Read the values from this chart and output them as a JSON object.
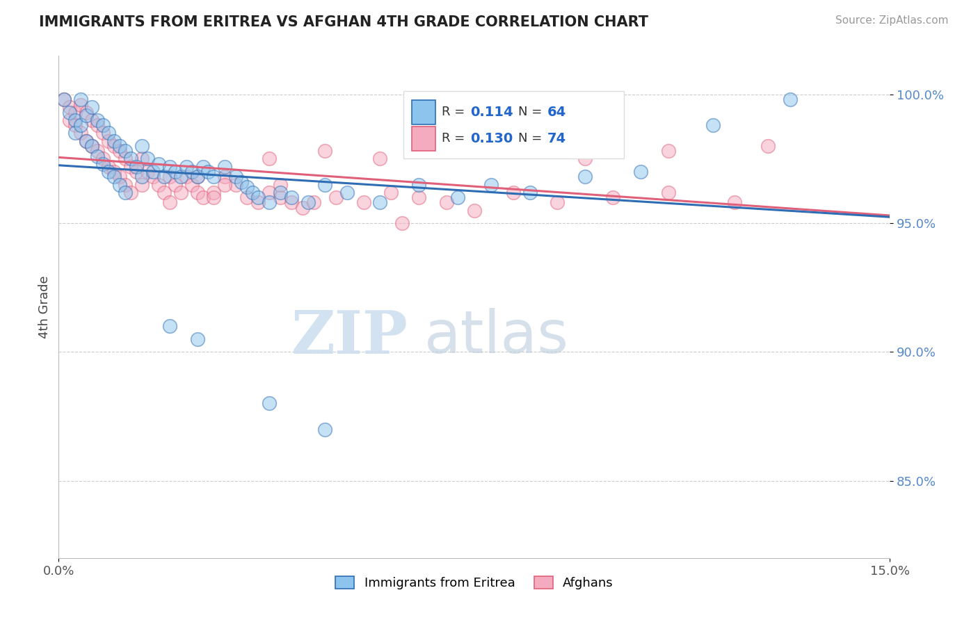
{
  "title": "IMMIGRANTS FROM ERITREA VS AFGHAN 4TH GRADE CORRELATION CHART",
  "source": "Source: ZipAtlas.com",
  "ylabel": "4th Grade",
  "xlim": [
    0.0,
    0.15
  ],
  "ylim": [
    0.82,
    1.015
  ],
  "yticks": [
    0.85,
    0.9,
    0.95,
    1.0
  ],
  "yticklabels": [
    "85.0%",
    "90.0%",
    "95.0%",
    "100.0%"
  ],
  "legend1_label": "Immigrants from Eritrea",
  "legend2_label": "Afghans",
  "r1": 0.114,
  "n1": 64,
  "r2": 0.13,
  "n2": 74,
  "color_eritrea": "#8DC4ED",
  "color_afghan": "#F4AABF",
  "color_line_eritrea": "#2E6DB4",
  "color_line_afghan": "#E0607A",
  "watermark_zip": "ZIP",
  "watermark_atlas": "atlas",
  "blue_x": [
    0.001,
    0.002,
    0.003,
    0.003,
    0.004,
    0.004,
    0.005,
    0.005,
    0.006,
    0.006,
    0.007,
    0.007,
    0.008,
    0.008,
    0.009,
    0.009,
    0.01,
    0.01,
    0.011,
    0.011,
    0.012,
    0.012,
    0.013,
    0.014,
    0.015,
    0.015,
    0.016,
    0.017,
    0.018,
    0.019,
    0.02,
    0.021,
    0.022,
    0.023,
    0.024,
    0.025,
    0.026,
    0.027,
    0.028,
    0.03,
    0.032,
    0.033,
    0.034,
    0.035,
    0.036,
    0.038,
    0.04,
    0.042,
    0.045,
    0.048,
    0.052,
    0.058,
    0.065,
    0.072,
    0.078,
    0.085,
    0.095,
    0.105,
    0.118,
    0.132,
    0.02,
    0.025,
    0.038,
    0.048
  ],
  "blue_y": [
    0.998,
    0.993,
    0.99,
    0.985,
    0.998,
    0.988,
    0.992,
    0.982,
    0.995,
    0.98,
    0.99,
    0.976,
    0.988,
    0.973,
    0.985,
    0.97,
    0.982,
    0.968,
    0.98,
    0.965,
    0.978,
    0.962,
    0.975,
    0.972,
    0.98,
    0.968,
    0.975,
    0.97,
    0.973,
    0.968,
    0.972,
    0.97,
    0.968,
    0.972,
    0.97,
    0.968,
    0.972,
    0.97,
    0.968,
    0.972,
    0.968,
    0.966,
    0.964,
    0.962,
    0.96,
    0.958,
    0.962,
    0.96,
    0.958,
    0.965,
    0.962,
    0.958,
    0.965,
    0.96,
    0.965,
    0.962,
    0.968,
    0.97,
    0.988,
    0.998,
    0.91,
    0.905,
    0.88,
    0.87
  ],
  "pink_x": [
    0.001,
    0.002,
    0.002,
    0.003,
    0.003,
    0.004,
    0.004,
    0.005,
    0.005,
    0.006,
    0.006,
    0.007,
    0.007,
    0.008,
    0.008,
    0.009,
    0.009,
    0.01,
    0.01,
    0.011,
    0.011,
    0.012,
    0.012,
    0.013,
    0.013,
    0.014,
    0.015,
    0.015,
    0.016,
    0.017,
    0.018,
    0.019,
    0.02,
    0.021,
    0.022,
    0.023,
    0.024,
    0.025,
    0.026,
    0.028,
    0.03,
    0.032,
    0.034,
    0.036,
    0.038,
    0.04,
    0.042,
    0.044,
    0.046,
    0.05,
    0.055,
    0.06,
    0.065,
    0.07,
    0.075,
    0.082,
    0.09,
    0.1,
    0.11,
    0.122,
    0.025,
    0.03,
    0.038,
    0.048,
    0.058,
    0.07,
    0.082,
    0.095,
    0.11,
    0.128,
    0.02,
    0.028,
    0.04,
    0.062
  ],
  "pink_y": [
    0.998,
    0.995,
    0.99,
    0.993,
    0.988,
    0.996,
    0.985,
    0.993,
    0.982,
    0.99,
    0.98,
    0.988,
    0.978,
    0.985,
    0.975,
    0.982,
    0.972,
    0.98,
    0.97,
    0.978,
    0.968,
    0.975,
    0.965,
    0.972,
    0.962,
    0.97,
    0.975,
    0.965,
    0.97,
    0.968,
    0.965,
    0.962,
    0.968,
    0.965,
    0.962,
    0.968,
    0.965,
    0.962,
    0.96,
    0.962,
    0.968,
    0.965,
    0.96,
    0.958,
    0.962,
    0.96,
    0.958,
    0.956,
    0.958,
    0.96,
    0.958,
    0.962,
    0.96,
    0.958,
    0.955,
    0.962,
    0.958,
    0.96,
    0.962,
    0.958,
    0.968,
    0.965,
    0.975,
    0.978,
    0.975,
    0.98,
    0.978,
    0.975,
    0.978,
    0.98,
    0.958,
    0.96,
    0.965,
    0.95
  ]
}
